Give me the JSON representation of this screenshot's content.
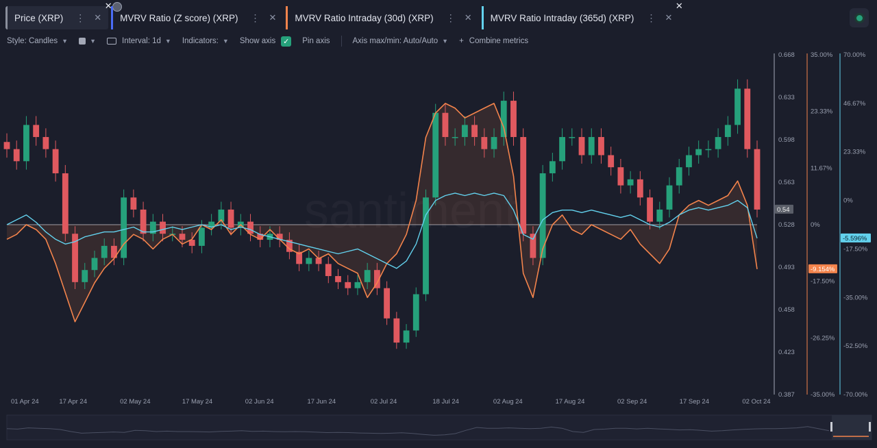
{
  "tabs": [
    {
      "label": "Price (XRP)",
      "color": "#8a8f9c",
      "active": true
    },
    {
      "label": "MVRV Ratio (Z score) (XRP)",
      "color": "#4a6cf7",
      "active": false
    },
    {
      "label": "MVRV Ratio Intraday (30d) (XRP)",
      "color": "#f4844c",
      "active": false
    },
    {
      "label": "MVRV Ratio Intraday (365d) (XRP)",
      "color": "#63d2ee",
      "active": false
    }
  ],
  "toolbar": {
    "style_label": "Style: Candles",
    "interval_label": "Interval: 1d",
    "indicators_label": "Indicators:",
    "show_axis_label": "Show axis",
    "pin_axis_label": "Pin axis",
    "axis_mode_label": "Axis max/min: Auto/Auto",
    "combine_label": "Combine metrics"
  },
  "watermark": "santiment",
  "chart_data": {
    "type": "line",
    "title": "",
    "x_ticks": [
      "01 Apr 24",
      "17 Apr 24",
      "02 May 24",
      "17 May 24",
      "02 Jun 24",
      "17 Jun 24",
      "02 Jul 24",
      "18 Jul 24",
      "02 Aug 24",
      "17 Aug 24",
      "02 Sep 24",
      "17 Sep 24",
      "02 Oct 24"
    ],
    "price_axis": {
      "ticks": [
        "0.668",
        "0.633",
        "0.598",
        "0.563",
        "0.528",
        "0.493",
        "0.458",
        "0.423",
        "0.387"
      ],
      "ylim": [
        0.387,
        0.668
      ],
      "last_value": "0.54",
      "color": "#a6abb8"
    },
    "mvrv30_axis": {
      "ticks": [
        "35.00%",
        "23.33%",
        "11.67%",
        "0%",
        "-17.50%",
        "-26.25%",
        "-35.00%"
      ],
      "ylim": [
        -35,
        35
      ],
      "last_value": "-9.154%",
      "color": "#f4844c"
    },
    "mvrv365_axis": {
      "ticks": [
        "70.00%",
        "46.67%",
        "23.33%",
        "0%",
        "-17.50%",
        "-35.00%",
        "-52.50%",
        "-70.00%"
      ],
      "ylim": [
        -70,
        70
      ],
      "last_value": "-5.596%",
      "color": "#63d2ee"
    },
    "series": [
      {
        "name": "Price (XRP)",
        "kind": "candles",
        "color_up": "#26a17b",
        "color_down": "#e0595f",
        "close": [
          0.59,
          0.58,
          0.61,
          0.6,
          0.59,
          0.57,
          0.52,
          0.48,
          0.49,
          0.5,
          0.51,
          0.5,
          0.55,
          0.54,
          0.52,
          0.53,
          0.52,
          0.52,
          0.515,
          0.51,
          0.525,
          0.53,
          0.54,
          0.525,
          0.53,
          0.52,
          0.515,
          0.52,
          0.515,
          0.505,
          0.495,
          0.5,
          0.495,
          0.485,
          0.48,
          0.475,
          0.48,
          0.49,
          0.475,
          0.45,
          0.43,
          0.44,
          0.47,
          0.55,
          0.62,
          0.6,
          0.6,
          0.61,
          0.6,
          0.59,
          0.6,
          0.63,
          0.6,
          0.52,
          0.5,
          0.57,
          0.58,
          0.6,
          0.6,
          0.585,
          0.6,
          0.585,
          0.575,
          0.56,
          0.565,
          0.55,
          0.53,
          0.54,
          0.56,
          0.575,
          0.585,
          0.59,
          0.59,
          0.6,
          0.61,
          0.64,
          0.59,
          0.54
        ]
      },
      {
        "name": "MVRV Ratio Intraday (30d) (XRP)",
        "kind": "line",
        "color": "#f4844c",
        "values": [
          -3,
          -2,
          0,
          -1,
          -3,
          -8,
          -14,
          -20,
          -16,
          -12,
          -9,
          -7,
          -4,
          -2,
          -3,
          -5,
          -3,
          -2,
          -4,
          -3,
          0,
          -1,
          1,
          -2,
          0,
          -2,
          -3,
          -1,
          -3,
          -5,
          -6,
          -5,
          -7,
          -6,
          -8,
          -9,
          -10,
          -15,
          -12,
          -8,
          -6,
          -2,
          5,
          18,
          23,
          25,
          24,
          22,
          23,
          24,
          25,
          20,
          10,
          -10,
          -15,
          -5,
          0,
          2,
          -1,
          -2,
          0,
          -1,
          -2,
          -3,
          -1,
          -4,
          -6,
          -8,
          -5,
          2,
          4,
          5,
          4,
          5,
          6,
          9,
          4,
          -9.154
        ]
      },
      {
        "name": "MVRV Ratio Intraday (365d) (XRP)",
        "kind": "line",
        "color": "#63d2ee",
        "values": [
          0,
          2,
          4,
          1,
          -3,
          -6,
          -8,
          -7,
          -5,
          -4,
          -3,
          -3,
          -2,
          -1,
          -3,
          -3,
          -2,
          -1,
          -2,
          -1,
          0,
          -1,
          0,
          -2,
          -1,
          -2,
          -4,
          -5,
          -6,
          -7,
          -8,
          -9,
          -10,
          -11,
          -12,
          -11,
          -10,
          -12,
          -14,
          -16,
          -18,
          -15,
          -8,
          4,
          10,
          12,
          13,
          12,
          13,
          12,
          13,
          12,
          6,
          -4,
          -6,
          2,
          5,
          6,
          6,
          5,
          6,
          5,
          4,
          3,
          4,
          2,
          0,
          -1,
          1,
          4,
          6,
          7,
          6,
          7,
          8,
          10,
          7,
          -5.596
        ]
      }
    ]
  }
}
